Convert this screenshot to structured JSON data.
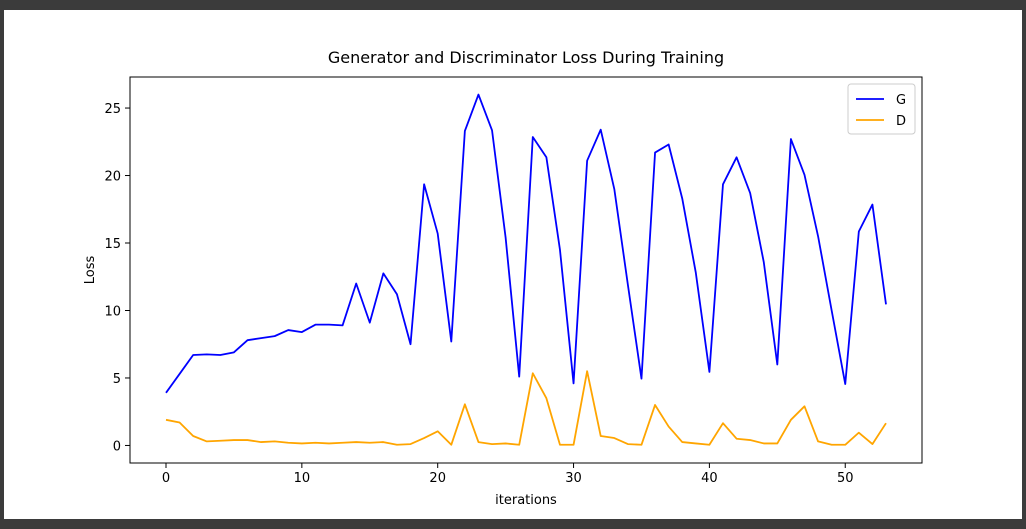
{
  "chart_data": {
    "type": "line",
    "title": "Generator and Discriminator Loss During Training",
    "xlabel": "iterations",
    "ylabel": "Loss",
    "xlim": [
      -2.65,
      55.65
    ],
    "ylim": [
      -1.3,
      27.3
    ],
    "xticks": [
      0,
      10,
      20,
      30,
      40,
      50
    ],
    "yticks": [
      0,
      5,
      10,
      15,
      20,
      25
    ],
    "grid": false,
    "legend_position": "top-right",
    "series": [
      {
        "name": "G",
        "color": "#0000ff",
        "x": [
          0,
          1,
          2,
          3,
          4,
          5,
          6,
          7,
          8,
          9,
          10,
          11,
          12,
          13,
          14,
          15,
          16,
          17,
          18,
          19,
          20,
          21,
          22,
          23,
          24,
          25,
          26,
          27,
          28,
          29,
          30,
          31,
          32,
          33,
          34,
          35,
          36,
          37,
          38,
          39,
          40,
          41,
          42,
          43,
          44,
          45,
          46,
          47,
          48,
          49,
          50,
          51,
          52,
          53
        ],
        "values": [
          3.9,
          5.3,
          6.7,
          6.75,
          6.7,
          6.9,
          7.8,
          7.95,
          8.1,
          8.55,
          8.4,
          8.95,
          8.95,
          8.9,
          12.0,
          9.1,
          12.75,
          11.2,
          7.5,
          19.35,
          15.7,
          7.7,
          23.3,
          26.0,
          23.35,
          15.4,
          5.1,
          22.85,
          21.35,
          14.5,
          4.6,
          21.1,
          23.4,
          19.0,
          11.9,
          4.95,
          21.7,
          22.3,
          18.3,
          12.8,
          5.45,
          19.35,
          21.35,
          18.7,
          13.6,
          6.0,
          22.7,
          20.05,
          15.5,
          10.0,
          4.55,
          15.85,
          17.85,
          10.45
        ]
      },
      {
        "name": "D",
        "color": "#ffa500",
        "x": [
          0,
          1,
          2,
          3,
          4,
          5,
          6,
          7,
          8,
          9,
          10,
          11,
          12,
          13,
          14,
          15,
          16,
          17,
          18,
          19,
          20,
          21,
          22,
          23,
          24,
          25,
          26,
          27,
          28,
          29,
          30,
          31,
          32,
          33,
          34,
          35,
          36,
          37,
          38,
          39,
          40,
          41,
          42,
          43,
          44,
          45,
          46,
          47,
          48,
          49,
          50,
          51,
          52,
          53
        ],
        "values": [
          1.9,
          1.7,
          0.7,
          0.3,
          0.35,
          0.4,
          0.4,
          0.25,
          0.3,
          0.2,
          0.15,
          0.2,
          0.15,
          0.2,
          0.25,
          0.2,
          0.25,
          0.05,
          0.1,
          0.55,
          1.05,
          0.05,
          3.05,
          0.25,
          0.1,
          0.15,
          0.05,
          5.35,
          3.5,
          0.05,
          0.05,
          5.5,
          0.7,
          0.55,
          0.1,
          0.05,
          3.0,
          1.4,
          0.25,
          0.15,
          0.05,
          1.65,
          0.5,
          0.4,
          0.15,
          0.15,
          1.9,
          2.9,
          0.3,
          0.05,
          0.05,
          0.95,
          0.1,
          1.65
        ]
      }
    ]
  }
}
